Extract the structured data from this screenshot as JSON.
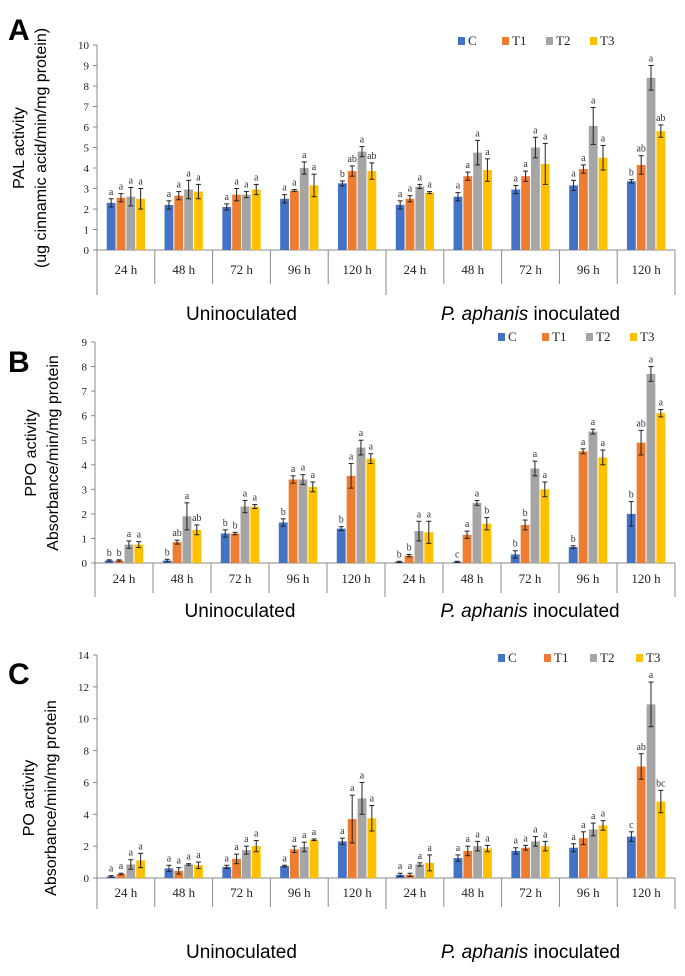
{
  "series_colors": {
    "C": "#4472C4",
    "T1": "#ED7D31",
    "T2": "#A5A5A5",
    "T3": "#FFC000"
  },
  "chart_data": [
    {
      "type": "bar",
      "panel": "A",
      "ylabel_line1": "PAL activity",
      "ylabel_line2": "(ug cinnamic acid/min/mg protein)",
      "ylim": [
        0,
        10
      ],
      "yticks": [
        0,
        1,
        2,
        3,
        4,
        5,
        6,
        7,
        8,
        9,
        10
      ],
      "categories": [
        "24 h",
        "48 h",
        "72 h",
        "96 h",
        "120 h",
        "24 h",
        "48 h",
        "72 h",
        "96 h",
        "120 h"
      ],
      "groups": [
        "Uninoculated",
        "P. aphanis inoculated"
      ],
      "group_label_uninoc": "Uninoculated",
      "group_label_italic": "P. aphanis",
      "group_label_rest": " inoculated",
      "legend": [
        "C",
        "T1",
        "T2",
        "T3"
      ],
      "series": [
        {
          "name": "C",
          "values": [
            2.3,
            2.2,
            2.1,
            2.5,
            3.25,
            2.2,
            2.6,
            2.95,
            3.15,
            3.35
          ],
          "errors": [
            0.2,
            0.2,
            0.15,
            0.2,
            0.12,
            0.2,
            0.2,
            0.2,
            0.25,
            0.08
          ],
          "labels": [
            "a",
            "a",
            "a",
            "a",
            "b",
            "a",
            "a",
            "a",
            "a",
            "b"
          ]
        },
        {
          "name": "T1",
          "values": [
            2.55,
            2.65,
            2.7,
            2.9,
            3.85,
            2.5,
            3.6,
            3.6,
            3.95,
            4.15
          ],
          "errors": [
            0.2,
            0.2,
            0.3,
            0.05,
            0.25,
            0.15,
            0.2,
            0.25,
            0.2,
            0.45
          ],
          "labels": [
            "a",
            "a",
            "a",
            "a",
            "ab",
            "a",
            "a",
            "a",
            "a",
            "ab"
          ]
        },
        {
          "name": "T2",
          "values": [
            2.6,
            2.95,
            2.7,
            4.0,
            4.8,
            3.1,
            4.75,
            5.0,
            6.05,
            8.4
          ],
          "errors": [
            0.45,
            0.45,
            0.15,
            0.3,
            0.25,
            0.1,
            0.6,
            0.5,
            0.9,
            0.6
          ],
          "labels": [
            "a",
            "a",
            "a",
            "a",
            "a",
            "a",
            "a",
            "a",
            "a",
            "a"
          ]
        },
        {
          "name": "T3",
          "values": [
            2.5,
            2.85,
            2.95,
            3.15,
            3.85,
            2.8,
            3.9,
            4.2,
            4.5,
            5.8
          ],
          "errors": [
            0.5,
            0.35,
            0.25,
            0.55,
            0.4,
            0.05,
            0.55,
            1.0,
            0.6,
            0.3
          ],
          "labels": [
            "a",
            "a",
            "a",
            "a",
            "ab",
            "a",
            "a",
            "a",
            "a",
            "ab"
          ]
        }
      ]
    },
    {
      "type": "bar",
      "panel": "B",
      "ylabel_line1": "PPO activity",
      "ylabel_line2": "Absorbance/min/mg protein",
      "ylim": [
        0,
        9
      ],
      "yticks": [
        0,
        1,
        2,
        3,
        4,
        5,
        6,
        7,
        8,
        9
      ],
      "categories": [
        "24 h",
        "48 h",
        "72 h",
        "96 h",
        "120 h",
        "24 h",
        "48 h",
        "72 h",
        "96 h",
        "120 h"
      ],
      "groups": [
        "Uninoculated",
        "P. aphanis inoculated"
      ],
      "group_label_uninoc": "Uninoculated",
      "group_label_italic": "P. aphanis",
      "group_label_rest": " inoculated",
      "legend": [
        "C",
        "T1",
        "T2",
        "T3"
      ],
      "series": [
        {
          "name": "C",
          "values": [
            0.1,
            0.1,
            1.2,
            1.65,
            1.4,
            0.05,
            0.05,
            0.35,
            0.65,
            2.0
          ],
          "errors": [
            0.03,
            0.05,
            0.15,
            0.15,
            0.08,
            0.02,
            0.02,
            0.15,
            0.05,
            0.5
          ],
          "labels": [
            "b",
            "b",
            "b",
            "b",
            "b",
            "b",
            "c",
            "b",
            "b",
            "b"
          ]
        },
        {
          "name": "T1",
          "values": [
            0.1,
            0.85,
            1.2,
            3.4,
            3.55,
            0.3,
            1.15,
            1.55,
            4.55,
            4.9
          ],
          "errors": [
            0.03,
            0.08,
            0.05,
            0.15,
            0.5,
            0.05,
            0.15,
            0.2,
            0.1,
            0.5
          ],
          "labels": [
            "b",
            "ab",
            "b",
            "a",
            "a",
            "b",
            "a",
            "b",
            "a",
            "ab"
          ]
        },
        {
          "name": "T2",
          "values": [
            0.75,
            1.9,
            2.3,
            3.4,
            4.7,
            1.3,
            2.45,
            3.85,
            5.35,
            7.7
          ],
          "errors": [
            0.15,
            0.55,
            0.25,
            0.2,
            0.3,
            0.4,
            0.1,
            0.3,
            0.1,
            0.3
          ],
          "labels": [
            "a",
            "a",
            "a",
            "a",
            "a",
            "a",
            "a",
            "a",
            "a",
            "a"
          ]
        },
        {
          "name": "T3",
          "values": [
            0.75,
            1.35,
            2.3,
            3.1,
            4.25,
            1.25,
            1.6,
            3.0,
            4.3,
            6.1
          ],
          "errors": [
            0.12,
            0.2,
            0.08,
            0.2,
            0.2,
            0.45,
            0.25,
            0.3,
            0.3,
            0.15
          ],
          "labels": [
            "a",
            "ab",
            "a",
            "a",
            "a",
            "a",
            "b",
            "a",
            "a",
            "a"
          ]
        }
      ]
    },
    {
      "type": "bar",
      "panel": "C",
      "ylabel_line1": "PO activity",
      "ylabel_line2": "Absorbance/min/mg protein",
      "ylim": [
        0,
        14
      ],
      "yticks": [
        0,
        2,
        4,
        6,
        8,
        10,
        12,
        14
      ],
      "categories": [
        "24 h",
        "48 h",
        "72 h",
        "96 h",
        "120 h",
        "24 h",
        "48 h",
        "72 h",
        "96 h",
        "120 h"
      ],
      "groups": [
        "Uninoculated",
        "P. aphanis inoculated"
      ],
      "group_label_uninoc": "Uninoculated",
      "group_label_italic": "P. aphanis",
      "group_label_rest": " inoculated",
      "legend": [
        "C",
        "T1",
        "T2",
        "T3"
      ],
      "series": [
        {
          "name": "C",
          "values": [
            0.1,
            0.6,
            0.7,
            0.75,
            2.3,
            0.2,
            1.25,
            1.7,
            1.9,
            2.6
          ],
          "errors": [
            0.05,
            0.2,
            0.1,
            0.05,
            0.2,
            0.1,
            0.2,
            0.2,
            0.25,
            0.3
          ],
          "labels": [
            "a",
            "a",
            "a",
            "a",
            "a",
            "a",
            "a",
            "a",
            "a",
            "c"
          ]
        },
        {
          "name": "T1",
          "values": [
            0.25,
            0.45,
            1.2,
            1.8,
            3.7,
            0.2,
            1.7,
            1.9,
            2.5,
            7.0
          ],
          "errors": [
            0.05,
            0.2,
            0.3,
            0.2,
            1.5,
            0.1,
            0.3,
            0.15,
            0.4,
            0.8
          ],
          "labels": [
            "a",
            "a",
            "a",
            "a",
            "a",
            "a",
            "a",
            "a",
            "a",
            "ab"
          ]
        },
        {
          "name": "T2",
          "values": [
            0.85,
            0.85,
            1.75,
            1.95,
            5.0,
            0.85,
            2.0,
            2.3,
            3.05,
            10.9
          ],
          "errors": [
            0.3,
            0.05,
            0.25,
            0.3,
            1.0,
            0.1,
            0.3,
            0.3,
            0.4,
            1.4
          ],
          "labels": [
            "a",
            "a",
            "a",
            "a",
            "a",
            "a",
            "a",
            "a",
            "a",
            "a"
          ]
        },
        {
          "name": "T3",
          "values": [
            1.1,
            0.8,
            2.0,
            2.4,
            3.75,
            0.95,
            1.85,
            2.0,
            3.3,
            4.8
          ],
          "errors": [
            0.45,
            0.2,
            0.35,
            0.05,
            0.8,
            0.5,
            0.2,
            0.3,
            0.3,
            0.7
          ],
          "labels": [
            "a",
            "a",
            "a",
            "a",
            "a",
            "a",
            "a",
            "a",
            "a",
            "bc"
          ]
        }
      ]
    }
  ]
}
